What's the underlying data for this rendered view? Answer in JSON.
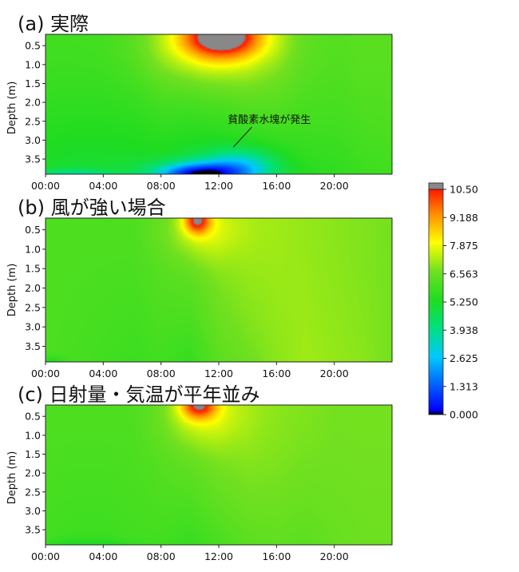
{
  "chart_data": {
    "type": "heatmap",
    "x_ticks": [
      "00:00",
      "04:00",
      "08:00",
      "12:00",
      "16:00",
      "20:00"
    ],
    "x_range": [
      0,
      24
    ],
    "y_ticks": [
      "0.5",
      "1.0",
      "1.5",
      "2.0",
      "2.5",
      "3.0",
      "3.5"
    ],
    "y_range": [
      0.2,
      3.9
    ],
    "ylabel": "Depth  (m)",
    "colorbar": {
      "ticks": [
        "10.50",
        "9.188",
        "7.875",
        "6.563",
        "5.250",
        "3.938",
        "2.625",
        "1.313",
        "0.000"
      ],
      "range": [
        0,
        10.5
      ],
      "stops": [
        {
          "v": 0.0,
          "c": "#000000"
        },
        {
          "v": 0.2,
          "c": "#0000ff"
        },
        {
          "v": 2.625,
          "c": "#00c8ff"
        },
        {
          "v": 3.938,
          "c": "#00e080"
        },
        {
          "v": 5.25,
          "c": "#20dc20"
        },
        {
          "v": 6.563,
          "c": "#70e020"
        },
        {
          "v": 7.875,
          "c": "#ffff00"
        },
        {
          "v": 9.188,
          "c": "#ff8c00"
        },
        {
          "v": 10.3,
          "c": "#ff1800"
        },
        {
          "v": 10.5,
          "c": "#888888"
        }
      ]
    },
    "panels": [
      {
        "title": "(a) 実際",
        "annotation": "貧酸素水塊が発生",
        "base": {
          "x": [
            0,
            2,
            4,
            6,
            8,
            10,
            12,
            14,
            16,
            18,
            20,
            22,
            24
          ],
          "surface": [
            5.8,
            5.8,
            5.8,
            5.9,
            6.2,
            6.3,
            6.5,
            6.7,
            6.6,
            6.2,
            6.1,
            6.2,
            6.2
          ],
          "bottom": [
            5.0,
            4.9,
            4.9,
            4.9,
            4.9,
            4.7,
            4.6,
            4.8,
            5.1,
            5.4,
            5.5,
            5.7,
            5.8
          ]
        },
        "features": [
          {
            "x": 12.2,
            "y": 0.25,
            "sx": 2.6,
            "sy": 0.55,
            "a": 4.2
          },
          {
            "x": 11.3,
            "y": 0.5,
            "sx": 4.2,
            "sy": 1.0,
            "a": 1.4
          },
          {
            "x": 10.5,
            "y": 3.9,
            "sx": 2.8,
            "sy": 0.3,
            "a": -4.5
          },
          {
            "x": 13.5,
            "y": 3.7,
            "sx": 2.5,
            "sy": 0.45,
            "a": -2.2
          },
          {
            "x": 2.0,
            "y": 3.9,
            "sx": 2.5,
            "sy": 0.12,
            "a": -1.4
          }
        ]
      },
      {
        "title": "(b) 風が強い場合",
        "base": {
          "x": [
            0,
            2,
            4,
            6,
            8,
            10,
            12,
            14,
            16,
            18,
            20,
            22,
            24
          ],
          "surface": [
            6.0,
            6.0,
            6.0,
            6.0,
            6.2,
            6.4,
            6.8,
            7.0,
            7.0,
            6.9,
            6.8,
            6.7,
            6.6
          ],
          "bottom": [
            6.0,
            5.9,
            5.8,
            5.7,
            5.8,
            5.6,
            6.2,
            6.5,
            6.8,
            7.0,
            6.9,
            6.8,
            6.6
          ]
        },
        "features": [
          {
            "x": 10.5,
            "y": 0.25,
            "sx": 0.9,
            "sy": 0.35,
            "a": 3.4
          },
          {
            "x": 10.8,
            "y": 0.5,
            "sx": 2.4,
            "sy": 0.8,
            "a": 1.0
          },
          {
            "x": 0.3,
            "y": 3.9,
            "sx": 1.0,
            "sy": 0.15,
            "a": -0.7
          }
        ]
      },
      {
        "title": "(c) 日射量・気温が平年並み",
        "base": {
          "x": [
            0,
            2,
            4,
            6,
            8,
            10,
            12,
            14,
            16,
            18,
            20,
            22,
            24
          ],
          "surface": [
            6.0,
            6.0,
            6.0,
            6.0,
            6.2,
            6.5,
            6.8,
            6.9,
            6.8,
            6.7,
            6.6,
            6.6,
            6.6
          ],
          "bottom": [
            5.8,
            5.7,
            5.7,
            5.8,
            5.8,
            5.6,
            5.9,
            6.2,
            6.3,
            6.2,
            6.4,
            6.5,
            6.5
          ]
        },
        "features": [
          {
            "x": 10.6,
            "y": 0.2,
            "sx": 1.2,
            "sy": 0.35,
            "a": 3.3
          },
          {
            "x": 10.8,
            "y": 0.5,
            "sx": 2.6,
            "sy": 0.8,
            "a": 1.0
          },
          {
            "x": 3.0,
            "y": 3.9,
            "sx": 3.0,
            "sy": 0.15,
            "a": -0.6
          }
        ]
      }
    ]
  }
}
